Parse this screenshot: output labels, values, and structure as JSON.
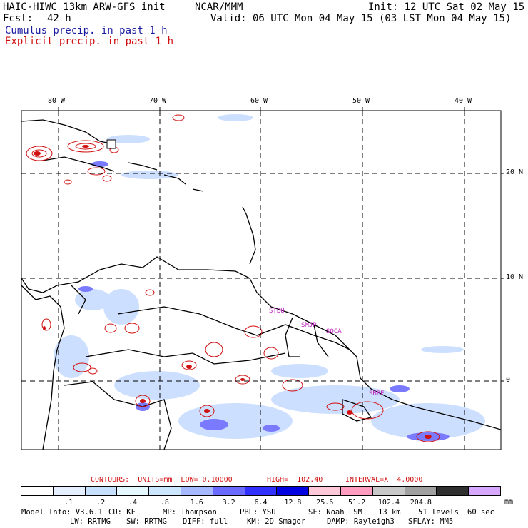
{
  "header": {
    "title_left": "HAIC-HIWC 13km ARW-GFS init",
    "org": "NCAR/MMM",
    "init": "Init: 12 UTC Sat 02 May 15",
    "fcst_label": "Fcst:",
    "fcst_value": "42 h",
    "valid": "Valid: 06 UTC Mon 04 May 15 (03 LST Mon 04 May 15)",
    "cumulus": "Cumulus precip. in past 1 h",
    "explicit": "Explicit precip. in past 1 h"
  },
  "map": {
    "lon_labels": [
      "80 W",
      "70 W",
      "60 W",
      "50 W",
      "40 W"
    ],
    "lat_labels": [
      "20 N",
      "10 N",
      "0"
    ],
    "stations": [
      "STBU",
      "SMJP",
      "SOCA",
      "SBBE"
    ]
  },
  "colors": {
    "cumulus": "#1a1aa0",
    "explicit": "#d01010",
    "station": "#c020c0"
  },
  "contours": {
    "label": "CONTOURS:  UNITS=mm  LOW= 0.10000",
    "high": "HIGH=  102.40",
    "interval": "INTERVAL=X  4.0000"
  },
  "colorbar": {
    "ticks": [
      ".1",
      ".2",
      ".4",
      ".8",
      "1.6",
      "3.2",
      "6.4",
      "12.8",
      "25.6",
      "51.2",
      "102.4",
      "204.8"
    ],
    "unit": "mm",
    "colors": [
      "#ffffff",
      "#e4f0ff",
      "#c8e0ff",
      "#e6f8ff",
      "#cde6ff",
      "#a6b8ff",
      "#6a6aff",
      "#3030ff",
      "#0000e0",
      "#ffc8d8",
      "#ff9cc0",
      "#c8c8c8",
      "#a0a0a0",
      "#303030",
      "#d8a8ff"
    ]
  },
  "footer": {
    "line1": [
      "Model Info: V3.6.1",
      "CU: KF",
      "MP: Thompson",
      "PBL: YSU",
      "SF: Noah LSM",
      "13 km",
      "51 levels",
      "60 sec"
    ],
    "line2": [
      "LW: RRTMG",
      "SW: RRTMG",
      "DIFF: full",
      "KM: 2D Smagor",
      "DAMP: Rayleigh3",
      "SFLAY: MM5"
    ]
  }
}
